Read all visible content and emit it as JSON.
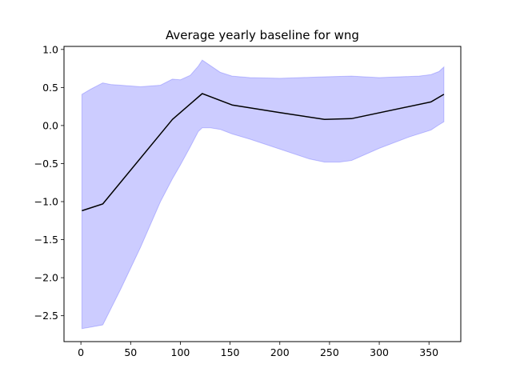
{
  "chart_data": {
    "type": "line",
    "title": "Average yearly baseline for wng",
    "xlabel": "",
    "ylabel": "",
    "xlim": [
      -17,
      382
    ],
    "ylim": [
      -2.84,
      1.04
    ],
    "xticks": [
      0,
      50,
      100,
      150,
      200,
      250,
      300,
      350
    ],
    "yticks": [
      1.0,
      0.5,
      0.0,
      -0.5,
      -1.0,
      -1.5,
      -2.0,
      -2.5
    ],
    "ytick_labels": [
      "1.0",
      "0.5",
      "0.0",
      "−0.5",
      "−1.0",
      "−1.5",
      "−2.0",
      "−2.5"
    ],
    "grid": false,
    "line_color": "#000000",
    "band_color": "#0000ff",
    "mean": {
      "x": [
        1,
        22,
        92,
        122,
        152,
        200,
        245,
        272,
        352,
        365
      ],
      "y": [
        -1.12,
        -1.03,
        0.08,
        0.42,
        0.27,
        0.17,
        0.08,
        0.09,
        0.31,
        0.41
      ]
    },
    "upper": {
      "x": [
        1,
        10,
        22,
        30,
        40,
        60,
        80,
        92,
        100,
        110,
        118,
        122,
        130,
        140,
        152,
        170,
        200,
        245,
        272,
        300,
        340,
        352,
        360,
        365
      ],
      "y": [
        0.41,
        0.48,
        0.56,
        0.54,
        0.53,
        0.51,
        0.53,
        0.61,
        0.6,
        0.66,
        0.78,
        0.86,
        0.79,
        0.7,
        0.65,
        0.63,
        0.62,
        0.64,
        0.65,
        0.63,
        0.65,
        0.67,
        0.71,
        0.77
      ]
    },
    "lower": {
      "x": [
        1,
        10,
        22,
        40,
        60,
        80,
        92,
        100,
        110,
        118,
        122,
        130,
        140,
        152,
        170,
        200,
        230,
        245,
        260,
        272,
        300,
        330,
        352,
        360,
        365
      ],
      "y": [
        -2.67,
        -2.65,
        -2.62,
        -2.15,
        -1.6,
        -1.0,
        -0.7,
        -0.52,
        -0.28,
        -0.08,
        -0.03,
        -0.03,
        -0.05,
        -0.11,
        -0.18,
        -0.31,
        -0.44,
        -0.48,
        -0.48,
        -0.46,
        -0.3,
        -0.15,
        -0.06,
        0.01,
        0.05
      ]
    }
  }
}
